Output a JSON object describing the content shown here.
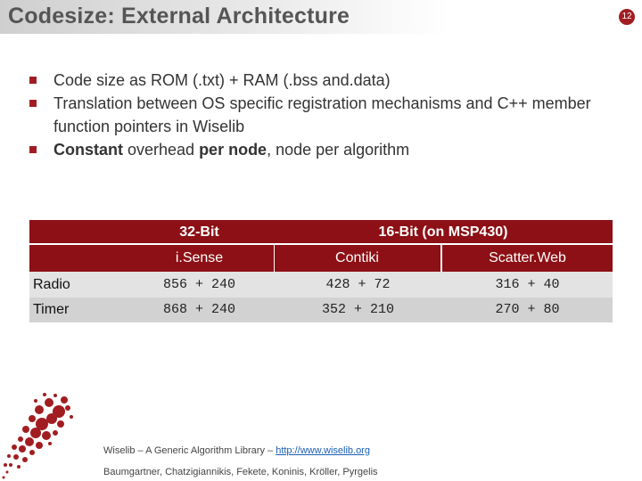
{
  "header": {
    "title": "Codesize: External Architecture",
    "page_number": "12"
  },
  "bullets": [
    {
      "text": "Code size as ROM (.txt) + RAM (.bss and.data)"
    },
    {
      "text": "Translation between OS specific registration mechanisms and C++ member function pointers in Wiselib"
    },
    {
      "strong1": "Constant",
      "mid": " overhead ",
      "strong2": "per node",
      "tail": ", node per algorithm"
    }
  ],
  "table": {
    "groups": [
      "32-Bit",
      "16-Bit (on MSP430)"
    ],
    "platforms": [
      "i.Sense",
      "Contiki",
      "Scatter.Web"
    ],
    "rows": [
      {
        "label": "Radio",
        "values": [
          "856 + 240",
          "428 + 72",
          "316 + 40"
        ]
      },
      {
        "label": "Timer",
        "values": [
          "868 + 240",
          "352 + 210",
          "270 + 80"
        ]
      }
    ]
  },
  "footer": {
    "line1_prefix": "Wiselib – A Generic Algorithm Library – ",
    "link": "http://www.wiselib.org",
    "line2": "Baumgartner, Chatzigiannikis, Fekete, Koninis, Kröller, Pyrgelis"
  },
  "colors": {
    "accent": "#8c1015",
    "bullet": "#a11d21"
  }
}
